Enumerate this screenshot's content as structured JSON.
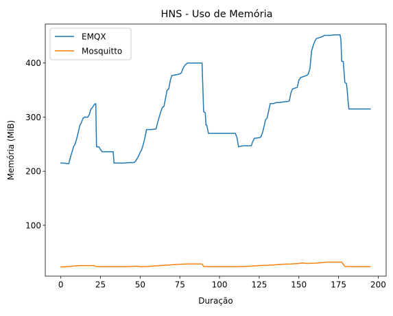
{
  "chart_data": {
    "type": "line",
    "title": "HNS - Uso de Memória",
    "xlabel": "Duração",
    "ylabel": "Memória (MiB)",
    "xlim": [
      -9.8,
      205
    ],
    "ylim": [
      6,
      472
    ],
    "x_ticks": [
      0,
      25,
      50,
      75,
      100,
      125,
      150,
      175,
      200
    ],
    "y_ticks": [
      100,
      200,
      300,
      400
    ],
    "grid": false,
    "legend_position": "top-left",
    "series": [
      {
        "name": "EMQX",
        "color": "#1f77b4",
        "points": [
          [
            0,
            215
          ],
          [
            2,
            215
          ],
          [
            4,
            214
          ],
          [
            5,
            214
          ],
          [
            6,
            225
          ],
          [
            7,
            235
          ],
          [
            8,
            245
          ],
          [
            9,
            250
          ],
          [
            10,
            260
          ],
          [
            11,
            272
          ],
          [
            12,
            285
          ],
          [
            13,
            290
          ],
          [
            14,
            298
          ],
          [
            15,
            300
          ],
          [
            16,
            300
          ],
          [
            17,
            300
          ],
          [
            18,
            305
          ],
          [
            19,
            315
          ],
          [
            20,
            318
          ],
          [
            21,
            323
          ],
          [
            22,
            325
          ],
          [
            22.5,
            245
          ],
          [
            23,
            245
          ],
          [
            24,
            245
          ],
          [
            25,
            240
          ],
          [
            26,
            236
          ],
          [
            28,
            236
          ],
          [
            30,
            236
          ],
          [
            33,
            236
          ],
          [
            33.5,
            215
          ],
          [
            36,
            215
          ],
          [
            40,
            215
          ],
          [
            43,
            216
          ],
          [
            46,
            216
          ],
          [
            47,
            218
          ],
          [
            48,
            223
          ],
          [
            49,
            228
          ],
          [
            50,
            235
          ],
          [
            51,
            240
          ],
          [
            52,
            250
          ],
          [
            53,
            262
          ],
          [
            54,
            277
          ],
          [
            57,
            277
          ],
          [
            60,
            278
          ],
          [
            61,
            290
          ],
          [
            62,
            300
          ],
          [
            63,
            310
          ],
          [
            64,
            318
          ],
          [
            65,
            320
          ],
          [
            66,
            335
          ],
          [
            67,
            350
          ],
          [
            68,
            352
          ],
          [
            69,
            368
          ],
          [
            70,
            377
          ],
          [
            72,
            378
          ],
          [
            74,
            379
          ],
          [
            75,
            380
          ],
          [
            76,
            382
          ],
          [
            77,
            390
          ],
          [
            78,
            395
          ],
          [
            79,
            398
          ],
          [
            80,
            400
          ],
          [
            85,
            400
          ],
          [
            89,
            400
          ],
          [
            90,
            310
          ],
          [
            91,
            308
          ],
          [
            91.5,
            285
          ],
          [
            92,
            285
          ],
          [
            93,
            270
          ],
          [
            100,
            270
          ],
          [
            105,
            270
          ],
          [
            110,
            270
          ],
          [
            111,
            262
          ],
          [
            112,
            245
          ],
          [
            113,
            246
          ],
          [
            115,
            247
          ],
          [
            120,
            247
          ],
          [
            121,
            255
          ],
          [
            122,
            261
          ],
          [
            123,
            261
          ],
          [
            125,
            262
          ],
          [
            126,
            263
          ],
          [
            127,
            270
          ],
          [
            128,
            282
          ],
          [
            129,
            295
          ],
          [
            130,
            298
          ],
          [
            131,
            312
          ],
          [
            132,
            325
          ],
          [
            134,
            325
          ],
          [
            136,
            327
          ],
          [
            138,
            327
          ],
          [
            140,
            328
          ],
          [
            143,
            329
          ],
          [
            144,
            330
          ],
          [
            145,
            345
          ],
          [
            146,
            352
          ],
          [
            147,
            353
          ],
          [
            149,
            355
          ],
          [
            150,
            368
          ],
          [
            151,
            373
          ],
          [
            153,
            375
          ],
          [
            155,
            377
          ],
          [
            156,
            380
          ],
          [
            157,
            390
          ],
          [
            158,
            422
          ],
          [
            159,
            432
          ],
          [
            160,
            440
          ],
          [
            161,
            445
          ],
          [
            163,
            447
          ],
          [
            165,
            449
          ],
          [
            166,
            451
          ],
          [
            170,
            451
          ],
          [
            172,
            452
          ],
          [
            175,
            452
          ],
          [
            176,
            452
          ],
          [
            176.5,
            443
          ],
          [
            177,
            403
          ],
          [
            178,
            403
          ],
          [
            178.5,
            382
          ],
          [
            179,
            364
          ],
          [
            180,
            362
          ],
          [
            180.5,
            348
          ],
          [
            181,
            330
          ],
          [
            181.5,
            315
          ],
          [
            185,
            315
          ],
          [
            190,
            315
          ],
          [
            195,
            315
          ]
        ]
      },
      {
        "name": "Mosquitto",
        "color": "#ff7f0e",
        "points": [
          [
            0,
            23
          ],
          [
            3,
            23.5
          ],
          [
            6,
            24
          ],
          [
            9,
            25
          ],
          [
            12,
            25.5
          ],
          [
            15,
            25.5
          ],
          [
            18,
            25.5
          ],
          [
            21,
            25.5
          ],
          [
            22,
            24
          ],
          [
            25,
            23.5
          ],
          [
            30,
            23.5
          ],
          [
            35,
            23.5
          ],
          [
            40,
            23.5
          ],
          [
            45,
            24
          ],
          [
            48,
            24.5
          ],
          [
            50,
            23.5
          ],
          [
            55,
            24
          ],
          [
            60,
            25
          ],
          [
            65,
            26
          ],
          [
            70,
            27
          ],
          [
            75,
            28
          ],
          [
            80,
            28.5
          ],
          [
            85,
            28.5
          ],
          [
            89,
            28.5
          ],
          [
            90,
            24
          ],
          [
            95,
            23.5
          ],
          [
            100,
            23.5
          ],
          [
            105,
            23.5
          ],
          [
            110,
            23.5
          ],
          [
            115,
            24
          ],
          [
            120,
            24.5
          ],
          [
            125,
            25.5
          ],
          [
            130,
            26
          ],
          [
            135,
            27
          ],
          [
            140,
            28
          ],
          [
            145,
            28.5
          ],
          [
            150,
            29.5
          ],
          [
            152,
            30.5
          ],
          [
            154,
            30
          ],
          [
            155,
            29.5
          ],
          [
            160,
            30
          ],
          [
            165,
            31
          ],
          [
            168,
            32
          ],
          [
            172,
            32
          ],
          [
            175,
            32
          ],
          [
            177,
            32
          ],
          [
            179,
            24
          ],
          [
            185,
            23.5
          ],
          [
            190,
            23.5
          ],
          [
            195,
            23.5
          ]
        ]
      }
    ]
  }
}
